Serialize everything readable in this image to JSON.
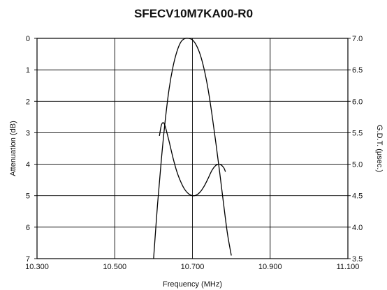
{
  "chart_data": {
    "type": "line",
    "title": "SFECV10M7KA00-R0",
    "xlabel": "Frequency (MHz)",
    "ylabel_left": "Attenuation (dB)",
    "ylabel_right": "G.D.T. (μsec.)",
    "xlim": [
      10.3,
      11.1
    ],
    "ylim_left": [
      0,
      7
    ],
    "ylim_left_inverted": true,
    "ylim_right": [
      3.5,
      7.0
    ],
    "grid": true,
    "x_tick_labels": [
      "10.300",
      "10.500",
      "10.700",
      "10.900",
      "11.100"
    ],
    "x_ticks": [
      10.3,
      10.5,
      10.7,
      10.9,
      11.1
    ],
    "y_left_tick_labels": [
      "0",
      "1",
      "2",
      "3",
      "4",
      "5",
      "6",
      "7"
    ],
    "y_left_ticks": [
      0,
      1,
      2,
      3,
      4,
      5,
      6,
      7
    ],
    "y_right_tick_labels": [
      "7.0",
      "6.5",
      "6.0",
      "5.5",
      "5.0",
      "4.5",
      "4.0",
      "3.5"
    ],
    "y_right_ticks": [
      7.0,
      6.5,
      6.0,
      5.5,
      5.0,
      4.5,
      4.0,
      3.5
    ],
    "series": [
      {
        "axis": "left",
        "x": [
          10.6,
          10.61,
          10.62,
          10.63,
          10.64,
          10.65,
          10.66,
          10.67,
          10.68,
          10.69,
          10.7,
          10.71,
          10.72,
          10.73,
          10.74,
          10.75,
          10.76,
          10.77,
          10.78,
          10.79,
          10.8
        ],
        "y": [
          7.0,
          5.3,
          3.85,
          2.6,
          1.6,
          0.9,
          0.42,
          0.12,
          0.01,
          0.0,
          0.05,
          0.22,
          0.52,
          0.98,
          1.6,
          2.4,
          3.3,
          4.25,
          5.25,
          6.2,
          6.9
        ]
      },
      {
        "axis": "right",
        "x": [
          10.615,
          10.62,
          10.625,
          10.63,
          10.64,
          10.65,
          10.66,
          10.67,
          10.68,
          10.69,
          10.7,
          10.71,
          10.72,
          10.73,
          10.74,
          10.75,
          10.76,
          10.77,
          10.78,
          10.785
        ],
        "y": [
          5.45,
          5.62,
          5.66,
          5.6,
          5.36,
          5.1,
          4.88,
          4.72,
          4.6,
          4.53,
          4.5,
          4.51,
          4.56,
          4.65,
          4.77,
          4.9,
          4.98,
          5.0,
          4.95,
          4.88
        ]
      }
    ]
  }
}
